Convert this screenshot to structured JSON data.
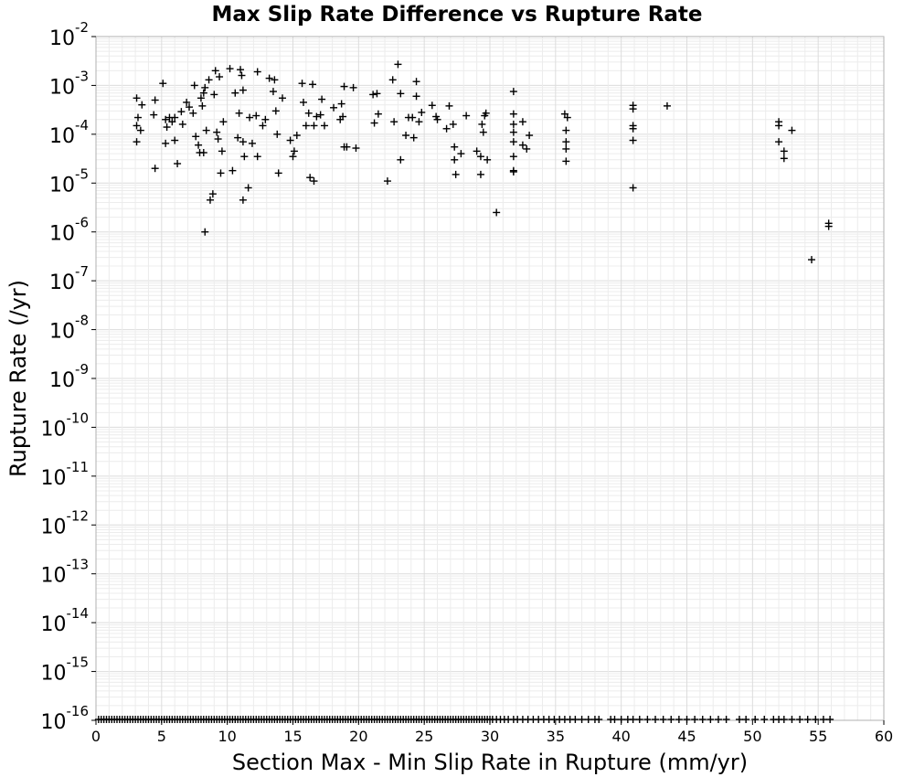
{
  "chart_data": {
    "type": "scatter",
    "title": "Max Slip Rate Difference vs Rupture Rate",
    "xlabel": "Section Max - Min Slip Rate in Rupture (mm/yr)",
    "ylabel": "Rupture Rate (/yr)",
    "xlim": [
      0,
      60
    ],
    "ylim": [
      1e-16,
      0.01
    ],
    "yscale": "log",
    "x_ticks": [
      "0",
      "5",
      "10",
      "15",
      "20",
      "25",
      "30",
      "35",
      "40",
      "45",
      "50",
      "55",
      "60"
    ],
    "y_ticks": [
      {
        "base": "10",
        "exp": "-16"
      },
      {
        "base": "10",
        "exp": "-15"
      },
      {
        "base": "10",
        "exp": "-14"
      },
      {
        "base": "10",
        "exp": "-13"
      },
      {
        "base": "10",
        "exp": "-12"
      },
      {
        "base": "10",
        "exp": "-11"
      },
      {
        "base": "10",
        "exp": "-10"
      },
      {
        "base": "10",
        "exp": "-9"
      },
      {
        "base": "10",
        "exp": "-8"
      },
      {
        "base": "10",
        "exp": "-7"
      },
      {
        "base": "10",
        "exp": "-6"
      },
      {
        "base": "10",
        "exp": "-5"
      },
      {
        "base": "10",
        "exp": "-4"
      },
      {
        "base": "10",
        "exp": "-3"
      },
      {
        "base": "10",
        "exp": "-2"
      }
    ],
    "grid": true,
    "marker": "+",
    "marker_color": "#000000",
    "series": [
      {
        "points": [
          [
            3.1,
            0.00055
          ],
          [
            3.2,
            0.00022
          ],
          [
            3.1,
            0.00015
          ],
          [
            3.1,
            7e-05
          ],
          [
            3.4,
            0.00012
          ],
          [
            3.5,
            0.0004
          ],
          [
            4.4,
            0.00025
          ],
          [
            4.5,
            0.0005
          ],
          [
            4.5,
            2e-05
          ],
          [
            5.1,
            0.0011
          ],
          [
            5.3,
            0.0002
          ],
          [
            5.4,
            0.00014
          ],
          [
            5.3,
            6.5e-05
          ],
          [
            5.6,
            0.00022
          ],
          [
            5.8,
            0.00018
          ],
          [
            6.0,
            0.00022
          ],
          [
            6.0,
            7.5e-05
          ],
          [
            6.2,
            2.5e-05
          ],
          [
            6.5,
            0.00029
          ],
          [
            6.6,
            0.00016
          ],
          [
            6.9,
            0.00045
          ],
          [
            7.1,
            0.00036
          ],
          [
            7.4,
            0.00027
          ],
          [
            7.5,
            0.001
          ],
          [
            7.6,
            9e-05
          ],
          [
            7.8,
            6e-05
          ],
          [
            7.9,
            4.2e-05
          ],
          [
            8.0,
            0.00055
          ],
          [
            8.1,
            0.00038
          ],
          [
            8.2,
            0.0007
          ],
          [
            8.2,
            4.2e-05
          ],
          [
            8.3,
            0.0009
          ],
          [
            8.4,
            0.00012
          ],
          [
            8.3,
            1e-06
          ],
          [
            8.6,
            0.0013
          ],
          [
            8.7,
            4.5e-06
          ],
          [
            8.9,
            6e-06
          ],
          [
            9.0,
            0.00065
          ],
          [
            9.1,
            0.002
          ],
          [
            9.2,
            0.00011
          ],
          [
            9.3,
            8e-05
          ],
          [
            9.4,
            0.0015
          ],
          [
            9.5,
            1.6e-05
          ],
          [
            9.6,
            4.5e-05
          ],
          [
            9.7,
            0.00018
          ],
          [
            10.2,
            0.0022
          ],
          [
            10.4,
            1.8e-05
          ],
          [
            10.6,
            0.0007
          ],
          [
            10.8,
            8.5e-05
          ],
          [
            10.9,
            0.00027
          ],
          [
            11.0,
            0.0021
          ],
          [
            11.1,
            0.0016
          ],
          [
            11.2,
            0.0008
          ],
          [
            11.2,
            7e-05
          ],
          [
            11.3,
            3.5e-05
          ],
          [
            11.2,
            4.5e-06
          ],
          [
            11.6,
            8e-06
          ],
          [
            11.7,
            0.00022
          ],
          [
            11.9,
            6.5e-05
          ],
          [
            12.2,
            0.00024
          ],
          [
            12.3,
            3.5e-05
          ],
          [
            12.3,
            0.0019
          ],
          [
            12.7,
            0.00015
          ],
          [
            12.9,
            0.0002
          ],
          [
            13.2,
            0.0014
          ],
          [
            13.5,
            0.00075
          ],
          [
            13.6,
            0.0013
          ],
          [
            13.7,
            0.0003
          ],
          [
            13.8,
            0.0001
          ],
          [
            13.9,
            1.6e-05
          ],
          [
            14.2,
            0.00055
          ],
          [
            14.8,
            7.5e-05
          ],
          [
            15.1,
            4.5e-05
          ],
          [
            15.0,
            3.5e-05
          ],
          [
            15.3,
            9.5e-05
          ],
          [
            15.7,
            0.0011
          ],
          [
            15.8,
            0.00045
          ],
          [
            16.0,
            0.00015
          ],
          [
            16.2,
            0.00027
          ],
          [
            16.3,
            1.3e-05
          ],
          [
            16.5,
            0.00105
          ],
          [
            16.6,
            0.00015
          ],
          [
            16.6,
            1.1e-05
          ],
          [
            16.8,
            0.00023
          ],
          [
            17.1,
            0.00025
          ],
          [
            17.2,
            0.00052
          ],
          [
            17.4,
            0.00015
          ],
          [
            18.1,
            0.00035
          ],
          [
            18.6,
            0.0002
          ],
          [
            18.7,
            0.00042
          ],
          [
            18.8,
            0.00023
          ],
          [
            18.9,
            0.00095
          ],
          [
            18.9,
            5.5e-05
          ],
          [
            19.1,
            5.5e-05
          ],
          [
            19.6,
            0.0009
          ],
          [
            19.8,
            5.2e-05
          ],
          [
            21.1,
            0.00065
          ],
          [
            21.2,
            0.00017
          ],
          [
            21.4,
            0.00068
          ],
          [
            21.5,
            0.00026
          ],
          [
            22.2,
            1.1e-05
          ],
          [
            22.6,
            0.0013
          ],
          [
            22.7,
            0.00018
          ],
          [
            23.0,
            0.0027
          ],
          [
            23.2,
            0.00068
          ],
          [
            23.2,
            3e-05
          ],
          [
            23.6,
            9.5e-05
          ],
          [
            23.8,
            0.00022
          ],
          [
            24.1,
            0.00022
          ],
          [
            24.2,
            8.5e-05
          ],
          [
            24.4,
            0.0012
          ],
          [
            24.4,
            0.0006
          ],
          [
            24.6,
            0.00018
          ],
          [
            24.8,
            0.00028
          ],
          [
            25.6,
            0.00039
          ],
          [
            25.9,
            0.00023
          ],
          [
            26.0,
            0.0002
          ],
          [
            26.7,
            0.00013
          ],
          [
            26.9,
            0.00038
          ],
          [
            27.2,
            0.00016
          ],
          [
            27.3,
            5.5e-05
          ],
          [
            27.3,
            3e-05
          ],
          [
            27.4,
            1.5e-05
          ],
          [
            27.8,
            4e-05
          ],
          [
            28.2,
            0.00024
          ],
          [
            29.0,
            4.5e-05
          ],
          [
            29.3,
            3.5e-05
          ],
          [
            29.3,
            1.5e-05
          ],
          [
            29.4,
            0.00016
          ],
          [
            29.5,
            0.00011
          ],
          [
            29.6,
            0.00024
          ],
          [
            29.7,
            0.00027
          ],
          [
            29.8,
            3e-05
          ],
          [
            30.5,
            2.5e-06
          ],
          [
            31.8,
            0.00075
          ],
          [
            31.8,
            0.00026
          ],
          [
            31.8,
            0.00016
          ],
          [
            31.8,
            0.00011
          ],
          [
            31.8,
            7e-05
          ],
          [
            31.8,
            3.5e-05
          ],
          [
            31.8,
            1.8e-05
          ],
          [
            31.8,
            1.7e-05
          ],
          [
            32.5,
            0.00018
          ],
          [
            32.5,
            6e-05
          ],
          [
            32.8,
            5e-05
          ],
          [
            33.0,
            9.5e-05
          ],
          [
            35.7,
            0.00026
          ],
          [
            35.8,
            0.00012
          ],
          [
            35.9,
            0.00022
          ],
          [
            35.8,
            7e-05
          ],
          [
            35.8,
            5e-05
          ],
          [
            35.8,
            2.8e-05
          ],
          [
            40.9,
            0.00039
          ],
          [
            40.9,
            0.00033
          ],
          [
            40.9,
            0.00015
          ],
          [
            40.9,
            0.00013
          ],
          [
            40.9,
            7.5e-05
          ],
          [
            40.9,
            8e-06
          ],
          [
            43.5,
            0.00038
          ],
          [
            52.0,
            0.00018
          ],
          [
            52.0,
            0.00015
          ],
          [
            52.0,
            7e-05
          ],
          [
            52.4,
            4.5e-05
          ],
          [
            52.4,
            3.2e-05
          ],
          [
            53.0,
            0.00012
          ],
          [
            54.5,
            2.7e-07
          ],
          [
            55.8,
            1.5e-06
          ],
          [
            55.8,
            1.3e-06
          ]
        ]
      },
      {
        "points_at_floor": {
          "y": 1e-16,
          "x": [
            0.2,
            0.4,
            0.6,
            0.8,
            1,
            1.2,
            1.4,
            1.6,
            1.8,
            2,
            2.2,
            2.4,
            2.6,
            2.8,
            3,
            3.2,
            3.4,
            3.6,
            3.8,
            4,
            4.2,
            4.4,
            4.6,
            4.8,
            5,
            5.2,
            5.4,
            5.6,
            5.8,
            6,
            6.2,
            6.4,
            6.6,
            6.8,
            7,
            7.2,
            7.4,
            7.6,
            7.8,
            8,
            8.2,
            8.4,
            8.6,
            8.8,
            9,
            9.2,
            9.4,
            9.6,
            9.8,
            10,
            10.2,
            10.4,
            10.6,
            10.8,
            11,
            11.2,
            11.4,
            11.6,
            11.8,
            12,
            12.2,
            12.4,
            12.6,
            12.8,
            13,
            13.2,
            13.4,
            13.6,
            13.8,
            14,
            14.2,
            14.4,
            14.6,
            14.8,
            15,
            15.2,
            15.4,
            15.6,
            15.8,
            16,
            16.2,
            16.4,
            16.6,
            16.8,
            17,
            17.2,
            17.4,
            17.6,
            17.8,
            18,
            18.2,
            18.4,
            18.6,
            18.8,
            19,
            19.2,
            19.4,
            19.6,
            19.8,
            20,
            20.2,
            20.4,
            20.6,
            20.8,
            21,
            21.2,
            21.4,
            21.6,
            21.8,
            22,
            22.2,
            22.4,
            22.6,
            22.8,
            23,
            23.2,
            23.4,
            23.6,
            23.8,
            24,
            24.2,
            24.4,
            24.6,
            24.8,
            25,
            25.2,
            25.4,
            25.6,
            25.8,
            26,
            26.2,
            26.4,
            26.6,
            26.8,
            27,
            27.2,
            27.4,
            27.6,
            27.8,
            28,
            28.2,
            28.4,
            28.6,
            28.8,
            29,
            29.2,
            29.4,
            29.6,
            29.8,
            30,
            30.2,
            30.5,
            30.8,
            31.1,
            31.4,
            31.8,
            32.1,
            32.5,
            32.9,
            33.3,
            33.7,
            34.1,
            34.5,
            34.9,
            35.3,
            35.7,
            36.1,
            36.5,
            37,
            37.5,
            38,
            38.3,
            39.2,
            39.5,
            40,
            40.5,
            40.9,
            41.4,
            42,
            42.6,
            43.2,
            43.8,
            44.4,
            45,
            45.6,
            46.2,
            46.8,
            47.4,
            48,
            49,
            49.5,
            50.2,
            50.9,
            51.6,
            52,
            52.4,
            53,
            53.6,
            54.2,
            54.8,
            55.4,
            55.9
          ]
        }
      }
    ]
  }
}
